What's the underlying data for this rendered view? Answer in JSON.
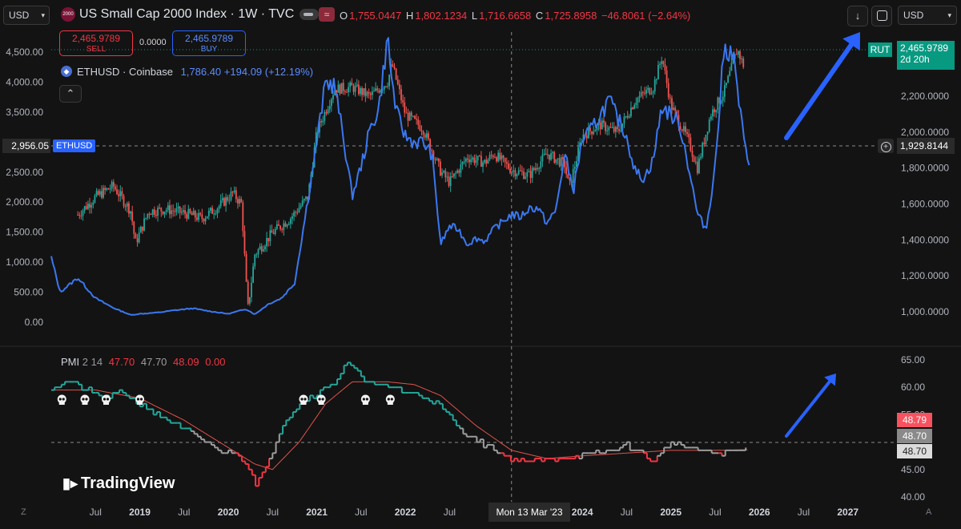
{
  "top_bar": {
    "currency_left": "USD",
    "symbol_badge": "2000",
    "title": "US Small Cap 2000 Index · 1W · TVC",
    "ohlc": {
      "o_label": "O",
      "o": "1,755.0447",
      "h_label": "H",
      "h": "1,802.1234",
      "l_label": "L",
      "l": "1,716.6658",
      "c_label": "C",
      "c": "1,725.8958",
      "change": "−46.8061 (−2.64%)"
    },
    "currency_right": "USD",
    "sell": {
      "value": "2,465.9789",
      "label": "SELL"
    },
    "spread": "0.0000",
    "buy": {
      "value": "2,465.9789",
      "label": "BUY"
    },
    "overlay": {
      "name": "ETHUSD · Coinbase",
      "value": "1,786.40",
      "change": "+194.09 (+12.19%)"
    },
    "collapse_icon": "chevron-up-icon"
  },
  "price_labels": {
    "left_ethusd_value": "2,956.05",
    "left_ethusd_tag": "ETHUSD",
    "right_rut_tag": "RUT",
    "right_rut_value": "2,465.9789",
    "right_rut_timer": "2d 20h",
    "crosshair_value": "1,929.8144"
  },
  "indicator": {
    "name": "PMI",
    "p1": "2",
    "p2": "14",
    "v1": "47.70",
    "v2": "47.70",
    "v3": "48.09",
    "v4": "0.00",
    "badges": [
      "48.79",
      "48.70",
      "48.70"
    ]
  },
  "bottom": {
    "crosshair_date": "Mon 13 Mar '23",
    "logo": "TradingView",
    "left_corner": "Z",
    "right_corner": "A"
  },
  "colors": {
    "background": "#131313",
    "eth_line": "#3a78f0",
    "candle_up": "#26a69a",
    "candle_down": "#ef5350",
    "pmi_green": "#26a69a",
    "pmi_gray": "#9e9e9e",
    "pmi_red": "#f23645",
    "arrow": "#2962ff"
  },
  "chart_data": [
    {
      "type": "line",
      "title": "US Small Cap 2000 Index · 1W · TVC",
      "left_axis": {
        "ticks": [
          "4,500.00",
          "4,000.00",
          "3,500.00",
          "2,956.05",
          "2,500.00",
          "2,000.00",
          "1,500.00",
          "1,000.00",
          "500.00",
          "0.00"
        ],
        "ylim": [
          0,
          4600
        ]
      },
      "right_axis": {
        "ticks": [
          "2,200.0000",
          "2,000.0000",
          "1,800.0000",
          "1,600.0000",
          "1,400.0000",
          "1,200.0000",
          "1,000.0000"
        ],
        "ylim": [
          880,
          2520
        ]
      },
      "x_ticks": [
        "Jul",
        "2019",
        "Jul",
        "2020",
        "Jul",
        "2021",
        "Jul",
        "2022",
        "Jul",
        "Mon 13 Mar '23",
        "2024",
        "Jul",
        "2025",
        "Jul",
        "2026",
        "Jul",
        "2027"
      ],
      "series": [
        {
          "name": "US Small Cap 2000 Index",
          "axis": "right",
          "style": "candles",
          "x": [
            2018.3,
            2018.5,
            2018.7,
            2018.9,
            2018.95,
            2019.1,
            2019.3,
            2019.5,
            2019.7,
            2019.9,
            2020.05,
            2020.15,
            2020.22,
            2020.3,
            2020.5,
            2020.7,
            2020.9,
            2021.0,
            2021.2,
            2021.4,
            2021.6,
            2021.8,
            2021.85,
            2022.0,
            2022.2,
            2022.4,
            2022.5,
            2022.7,
            2022.9,
            2023.0,
            2023.2,
            2023.4,
            2023.6,
            2023.8,
            2023.85,
            2024.0,
            2024.2,
            2024.4,
            2024.6,
            2024.8,
            2024.9,
            2025.0,
            2025.2,
            2025.3,
            2025.45,
            2025.6,
            2025.75,
            2025.83
          ],
          "y": [
            1540,
            1640,
            1700,
            1560,
            1380,
            1560,
            1570,
            1550,
            1520,
            1590,
            1660,
            1600,
            1010,
            1320,
            1440,
            1520,
            1640,
            2000,
            2240,
            2250,
            2200,
            2280,
            2380,
            2100,
            2020,
            1780,
            1720,
            1860,
            1830,
            1880,
            1790,
            1760,
            1880,
            1820,
            1690,
            1980,
            2040,
            2000,
            2180,
            2250,
            2420,
            2150,
            1950,
            1800,
            2100,
            2220,
            2460,
            2360
          ]
        },
        {
          "name": "ETHUSD · Coinbase",
          "axis": "left",
          "style": "line",
          "x": [
            2018.0,
            2018.1,
            2018.3,
            2018.5,
            2018.7,
            2018.9,
            2019.0,
            2019.2,
            2019.4,
            2019.6,
            2019.8,
            2020.0,
            2020.2,
            2020.3,
            2020.45,
            2020.6,
            2020.75,
            2020.9,
            2021.0,
            2021.1,
            2021.2,
            2021.3,
            2021.4,
            2021.5,
            2021.6,
            2021.7,
            2021.8,
            2021.85,
            2021.9,
            2022.0,
            2022.1,
            2022.2,
            2022.3,
            2022.4,
            2022.5,
            2022.6,
            2022.7,
            2022.8,
            2022.9,
            2023.0,
            2023.2,
            2023.3,
            2023.4,
            2023.5,
            2023.6,
            2023.7,
            2023.8,
            2023.9,
            2024.0,
            2024.1,
            2024.2,
            2024.3,
            2024.5,
            2024.6,
            2024.7,
            2024.8,
            2024.9,
            2025.0,
            2025.1,
            2025.2,
            2025.3,
            2025.4,
            2025.5,
            2025.6,
            2025.7,
            2025.8,
            2025.85,
            2025.9
          ],
          "y": [
            1080,
            500,
            740,
            400,
            240,
            120,
            140,
            160,
            200,
            230,
            180,
            140,
            220,
            130,
            300,
            400,
            650,
            2050,
            3000,
            4000,
            3950,
            3080,
            2100,
            2600,
            3200,
            3550,
            4750,
            4000,
            3500,
            3100,
            3000,
            3000,
            2800,
            1300,
            1600,
            1550,
            1300,
            1400,
            1350,
            1550,
            1800,
            1750,
            1900,
            1900,
            1650,
            1850,
            2800,
            2200,
            3050,
            3200,
            3450,
            3700,
            3100,
            2500,
            2400,
            2700,
            3600,
            3450,
            3300,
            2600,
            1800,
            1550,
            2600,
            4550,
            4500,
            3300,
            2800,
            2600
          ]
        }
      ]
    },
    {
      "type": "line",
      "title": "PMI 2 14",
      "axis": {
        "ticks": [
          "65.00",
          "60.00",
          "55.00",
          "50.00",
          "45.00",
          "40.00"
        ],
        "ylim": [
          40,
          66
        ]
      },
      "series": [
        {
          "name": "PMI",
          "x": [
            2018.0,
            2018.2,
            2018.4,
            2018.6,
            2018.8,
            2019.0,
            2019.3,
            2019.6,
            2019.9,
            2020.1,
            2020.25,
            2020.3,
            2020.45,
            2020.6,
            2020.8,
            2021.0,
            2021.2,
            2021.35,
            2021.5,
            2021.7,
            2021.9,
            2022.0,
            2022.2,
            2022.4,
            2022.6,
            2022.9,
            2023.2,
            2023.5,
            2023.9,
            2024.2,
            2024.5,
            2024.8,
            2025.0,
            2025.2,
            2025.5,
            2025.8,
            2025.88
          ],
          "y": [
            60,
            61,
            59.5,
            58,
            59,
            57,
            54,
            51.5,
            48.5,
            48,
            45,
            42,
            46,
            53,
            57,
            59,
            61,
            64.5,
            62,
            60,
            60,
            59,
            58.5,
            56.5,
            52.5,
            49.5,
            47,
            46.5,
            47.5,
            48,
            49.5,
            46.5,
            50,
            49,
            48,
            48.5,
            48.7
          ]
        },
        {
          "name": "signal",
          "x": [
            2018.0,
            2018.5,
            2019.0,
            2019.5,
            2020.0,
            2020.3,
            2020.5,
            2020.8,
            2021.1,
            2021.4,
            2021.8,
            2022.1,
            2022.4,
            2022.8,
            2023.2,
            2023.6,
            2024.0,
            2024.5,
            2025.0,
            2025.5,
            2025.88
          ],
          "y": [
            59.5,
            59.5,
            58,
            54,
            49,
            46,
            45,
            50,
            57,
            61,
            61,
            60.5,
            58.5,
            53,
            48.5,
            47,
            47.5,
            48,
            48.5,
            48.5,
            48.6
          ]
        }
      ],
      "markers": {
        "icon": "skull-icon",
        "count": 8
      }
    }
  ]
}
